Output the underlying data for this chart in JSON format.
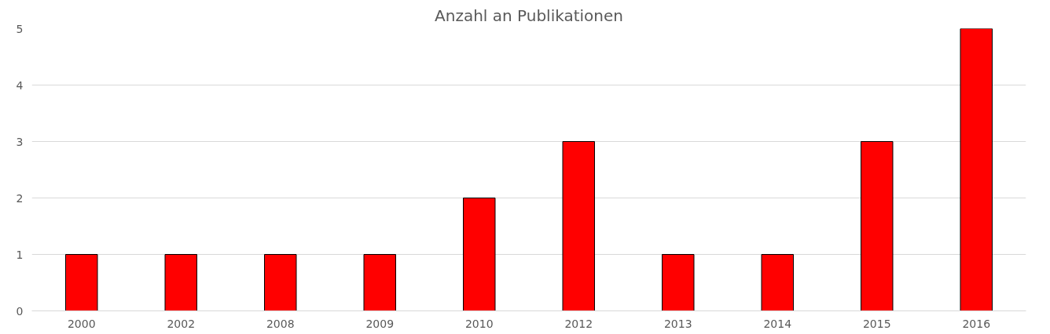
{
  "chart_data": {
    "type": "bar",
    "title": "Anzahl an Publikationen",
    "categories": [
      "2000",
      "2002",
      "2008",
      "2009",
      "2010",
      "2012",
      "2013",
      "2014",
      "2015",
      "2016"
    ],
    "values": [
      1,
      1,
      1,
      1,
      2,
      3,
      1,
      1,
      3,
      5
    ],
    "color": "#ff0000",
    "ylim": [
      0,
      5
    ],
    "yticks": [
      0,
      1,
      2,
      3,
      4,
      5
    ],
    "grid": "y"
  }
}
